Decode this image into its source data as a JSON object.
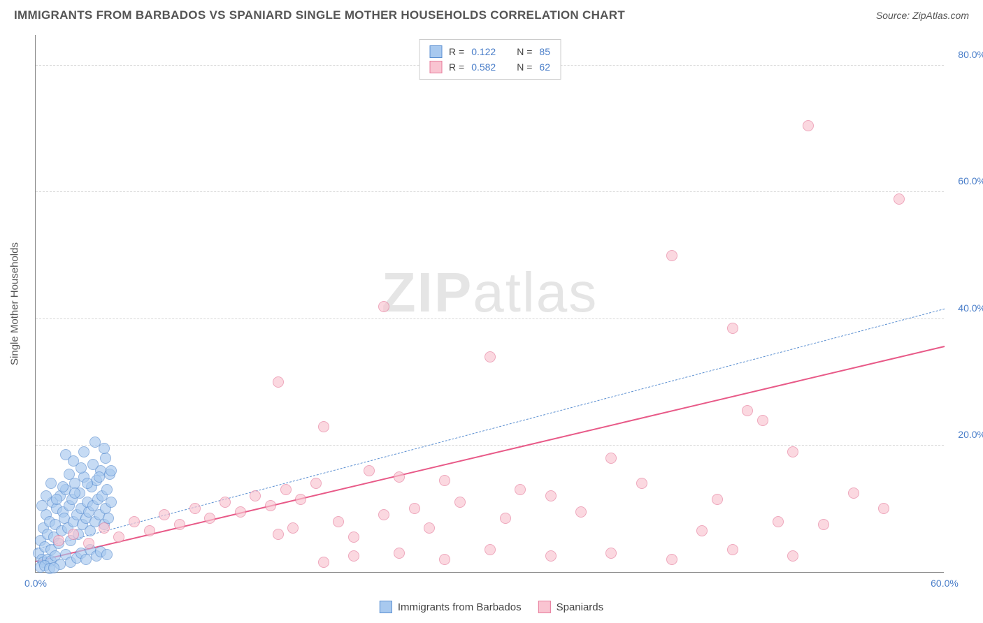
{
  "header": {
    "title": "IMMIGRANTS FROM BARBADOS VS SPANIARD SINGLE MOTHER HOUSEHOLDS CORRELATION CHART",
    "source_label": "Source: ",
    "source_value": "ZipAtlas.com"
  },
  "watermark": {
    "bold": "ZIP",
    "rest": "atlas"
  },
  "chart": {
    "type": "scatter",
    "background_color": "#ffffff",
    "grid_color": "#d8d8d8",
    "axis_color": "#888888",
    "tick_text_color": "#4a7ec9",
    "label_text_color": "#555555",
    "y_axis_title": "Single Mother Households",
    "xlim": [
      0,
      60
    ],
    "ylim": [
      0,
      85
    ],
    "y_ticks": [
      20,
      40,
      60,
      80
    ],
    "y_tick_labels": [
      "20.0%",
      "40.0%",
      "60.0%",
      "80.0%"
    ],
    "x_tick_left": {
      "pos": 0,
      "label": "0.0%"
    },
    "x_tick_right": {
      "pos": 60,
      "label": "60.0%"
    },
    "point_radius": 8,
    "series": [
      {
        "name": "Immigrants from Barbados",
        "fill_color": "#a8c9ef",
        "stroke_color": "#5b8fd1",
        "fill_opacity": 0.65,
        "r_value": "0.122",
        "n_value": "85",
        "trend": {
          "x1": 0,
          "y1": 3.5,
          "x2": 60,
          "y2": 41.5,
          "style": "dashed",
          "width": 1.5,
          "color": "#5b8fd1"
        },
        "points": [
          [
            0.2,
            3
          ],
          [
            0.3,
            5
          ],
          [
            0.4,
            2
          ],
          [
            0.5,
            7
          ],
          [
            0.6,
            4
          ],
          [
            0.7,
            9
          ],
          [
            0.8,
            6
          ],
          [
            0.9,
            8
          ],
          [
            1.0,
            3.5
          ],
          [
            1.1,
            11
          ],
          [
            1.2,
            5.5
          ],
          [
            1.3,
            7.5
          ],
          [
            1.4,
            10
          ],
          [
            1.5,
            4.5
          ],
          [
            1.6,
            12
          ],
          [
            1.7,
            6.5
          ],
          [
            1.8,
            9.5
          ],
          [
            1.9,
            8.5
          ],
          [
            2.0,
            13
          ],
          [
            2.1,
            7
          ],
          [
            2.2,
            10.5
          ],
          [
            2.3,
            5
          ],
          [
            2.4,
            11.5
          ],
          [
            2.5,
            8
          ],
          [
            2.6,
            14
          ],
          [
            2.7,
            9
          ],
          [
            2.8,
            6
          ],
          [
            2.9,
            12.5
          ],
          [
            3.0,
            10
          ],
          [
            3.1,
            7.5
          ],
          [
            3.2,
            15
          ],
          [
            3.3,
            8.5
          ],
          [
            3.4,
            11
          ],
          [
            3.5,
            9.5
          ],
          [
            3.6,
            6.5
          ],
          [
            3.7,
            13.5
          ],
          [
            3.8,
            10.5
          ],
          [
            3.9,
            8
          ],
          [
            4.0,
            14.5
          ],
          [
            4.1,
            11.5
          ],
          [
            4.2,
            9
          ],
          [
            4.3,
            16
          ],
          [
            4.4,
            12
          ],
          [
            4.5,
            7.5
          ],
          [
            4.6,
            10
          ],
          [
            4.7,
            13
          ],
          [
            4.8,
            8.5
          ],
          [
            4.9,
            15.5
          ],
          [
            5.0,
            11
          ],
          [
            0.5,
            1.5
          ],
          [
            0.8,
            2
          ],
          [
            1.0,
            1.8
          ],
          [
            1.3,
            2.5
          ],
          [
            1.6,
            1.2
          ],
          [
            2.0,
            2.8
          ],
          [
            2.3,
            1.5
          ],
          [
            2.7,
            2.2
          ],
          [
            3.0,
            3
          ],
          [
            3.3,
            2
          ],
          [
            3.6,
            3.5
          ],
          [
            4.0,
            2.5
          ],
          [
            4.3,
            3.2
          ],
          [
            4.7,
            2.8
          ],
          [
            0.4,
            10.5
          ],
          [
            0.7,
            12
          ],
          [
            1.0,
            14
          ],
          [
            1.4,
            11.5
          ],
          [
            1.8,
            13.5
          ],
          [
            2.2,
            15.5
          ],
          [
            2.6,
            12.5
          ],
          [
            3.0,
            16.5
          ],
          [
            3.4,
            14
          ],
          [
            3.8,
            17
          ],
          [
            4.2,
            15
          ],
          [
            4.6,
            18
          ],
          [
            5.0,
            16
          ],
          [
            2.0,
            18.5
          ],
          [
            2.5,
            17.5
          ],
          [
            3.2,
            19
          ],
          [
            3.9,
            20.5
          ],
          [
            4.5,
            19.5
          ],
          [
            0.3,
            0.8
          ],
          [
            0.6,
            1.0
          ],
          [
            0.9,
            0.5
          ],
          [
            1.2,
            0.7
          ]
        ]
      },
      {
        "name": "Spaniards",
        "fill_color": "#f9c4d1",
        "stroke_color": "#e67a9a",
        "fill_opacity": 0.65,
        "r_value": "0.582",
        "n_value": "62",
        "trend": {
          "x1": 0,
          "y1": 1.5,
          "x2": 60,
          "y2": 35.5,
          "style": "solid",
          "width": 2.5,
          "color": "#e85a88"
        },
        "points": [
          [
            1.5,
            5
          ],
          [
            2.5,
            6
          ],
          [
            3.5,
            4.5
          ],
          [
            4.5,
            7
          ],
          [
            5.5,
            5.5
          ],
          [
            6.5,
            8
          ],
          [
            7.5,
            6.5
          ],
          [
            8.5,
            9
          ],
          [
            9.5,
            7.5
          ],
          [
            10.5,
            10
          ],
          [
            11.5,
            8.5
          ],
          [
            12.5,
            11
          ],
          [
            13.5,
            9.5
          ],
          [
            14.5,
            12
          ],
          [
            15.5,
            10.5
          ],
          [
            16.5,
            13
          ],
          [
            17.5,
            11.5
          ],
          [
            18.5,
            14
          ],
          [
            16,
            6
          ],
          [
            17,
            7
          ],
          [
            19,
            23
          ],
          [
            20,
            8
          ],
          [
            21,
            5.5
          ],
          [
            22,
            16
          ],
          [
            23,
            9
          ],
          [
            24,
            15
          ],
          [
            25,
            10
          ],
          [
            26,
            7
          ],
          [
            27,
            14.5
          ],
          [
            28,
            11
          ],
          [
            30,
            34
          ],
          [
            31,
            8.5
          ],
          [
            32,
            13
          ],
          [
            34,
            12
          ],
          [
            36,
            9.5
          ],
          [
            38,
            18
          ],
          [
            40,
            14
          ],
          [
            42,
            50
          ],
          [
            44,
            6.5
          ],
          [
            45,
            11.5
          ],
          [
            46,
            38.5
          ],
          [
            47,
            25.5
          ],
          [
            48,
            24
          ],
          [
            49,
            8
          ],
          [
            50,
            19
          ],
          [
            51,
            70.5
          ],
          [
            52,
            7.5
          ],
          [
            54,
            12.5
          ],
          [
            56,
            10
          ],
          [
            57,
            59
          ],
          [
            19,
            1.5
          ],
          [
            21,
            2.5
          ],
          [
            24,
            3
          ],
          [
            27,
            2
          ],
          [
            30,
            3.5
          ],
          [
            34,
            2.5
          ],
          [
            38,
            3
          ],
          [
            42,
            2
          ],
          [
            46,
            3.5
          ],
          [
            50,
            2.5
          ],
          [
            16,
            30
          ],
          [
            23,
            42
          ]
        ]
      }
    ],
    "legend_top": {
      "r_label": "R  =",
      "n_label": "N  ="
    },
    "legend_bottom_items": [
      {
        "label": "Immigrants from Barbados",
        "series_idx": 0
      },
      {
        "label": "Spaniards",
        "series_idx": 1
      }
    ]
  }
}
